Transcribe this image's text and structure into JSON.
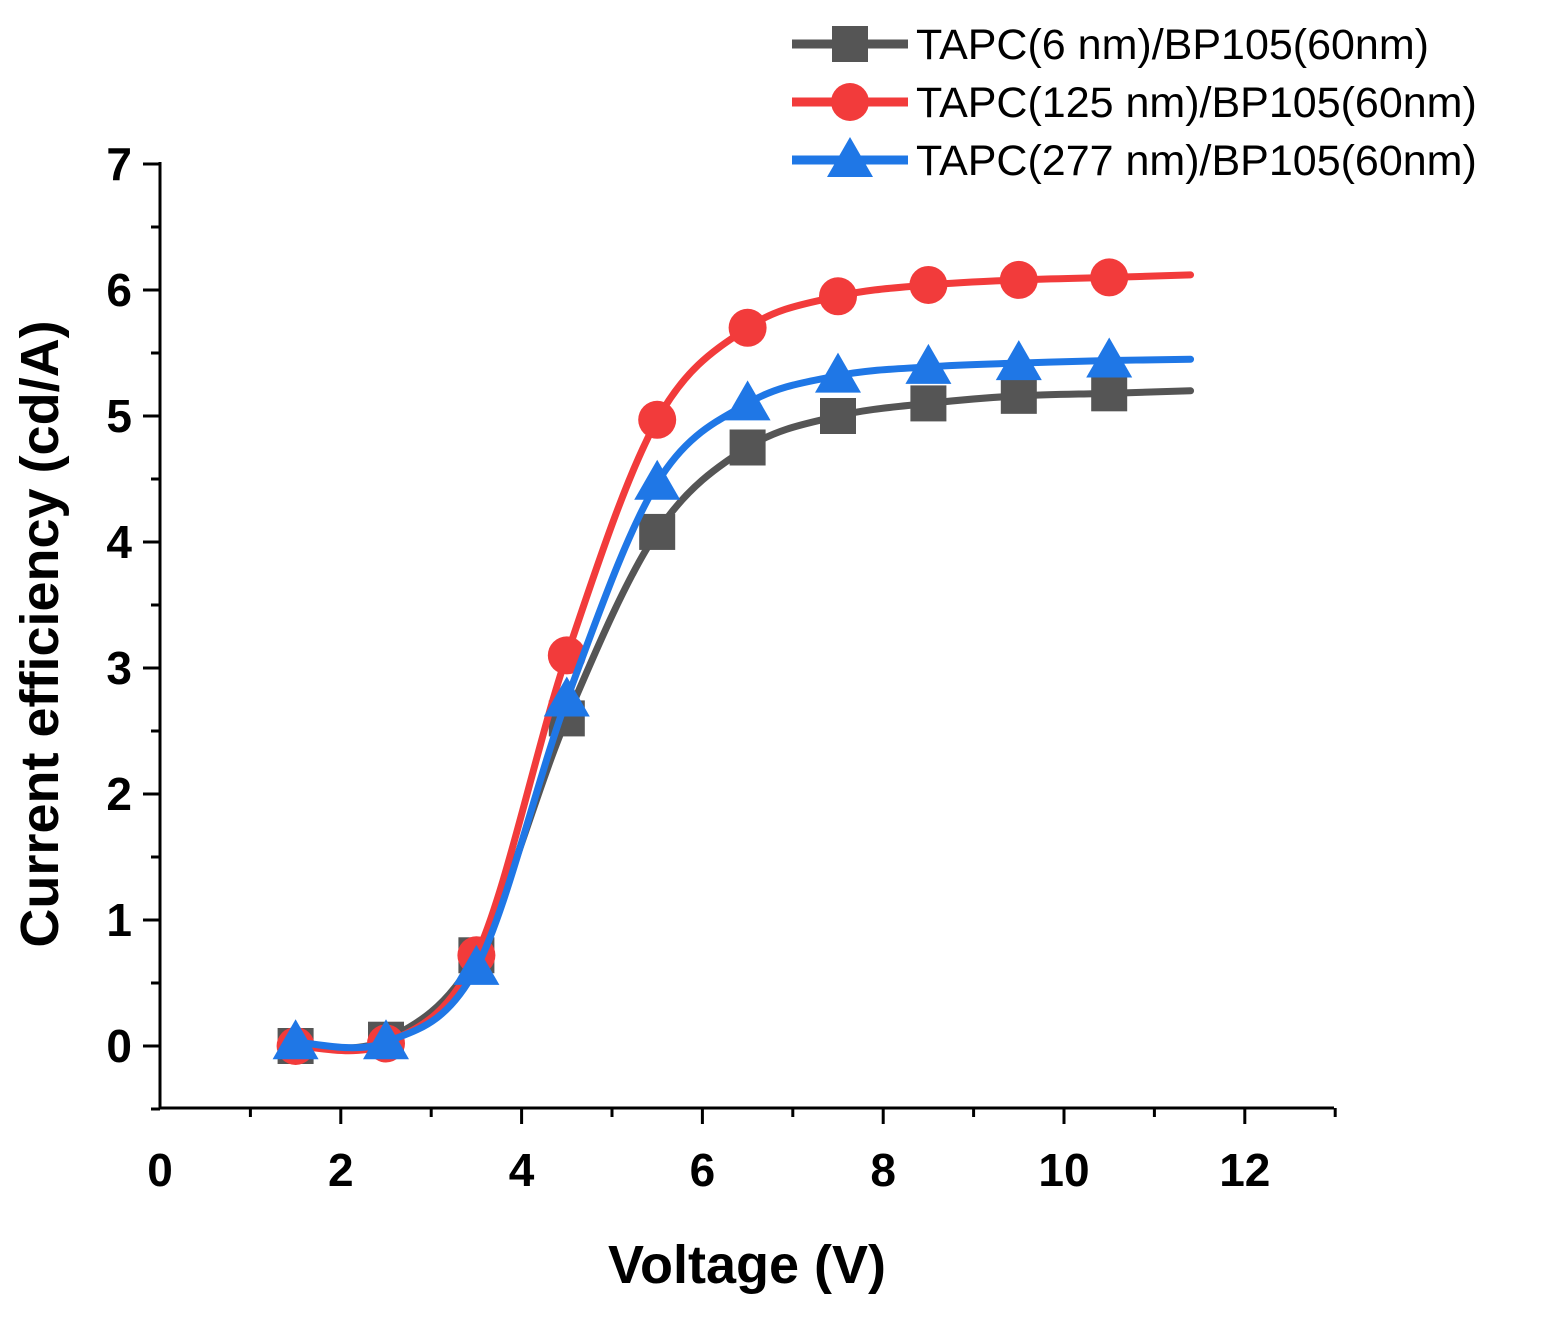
{
  "chart_data": {
    "type": "line",
    "title": "",
    "xlabel": "Voltage (V)",
    "ylabel": "Current efficiency (cd/A)",
    "xlim": [
      0,
      13
    ],
    "ylim": [
      -0.5,
      7
    ],
    "xticks": [
      "0",
      "2",
      "4",
      "6",
      "8",
      "10",
      "12"
    ],
    "yticks": [
      "0",
      "1",
      "2",
      "3",
      "4",
      "5",
      "6",
      "7"
    ],
    "grid": false,
    "legend_position": "top-right",
    "x": [
      1.5,
      2.5,
      3.5,
      4.5,
      5.5,
      6.5,
      7.5,
      8.5,
      9.5,
      10.5
    ],
    "x_end": 11.4,
    "series": [
      {
        "name": "TAPC(6 nm)/BP105(60nm)",
        "color": "#555555",
        "marker": "square",
        "values": [
          0.0,
          0.05,
          0.72,
          2.6,
          4.08,
          4.75,
          5.0,
          5.1,
          5.16,
          5.18
        ],
        "end_value": 5.2
      },
      {
        "name": "TAPC(125 nm)/BP105(60nm)",
        "color": "#f23b3b",
        "marker": "circle",
        "values": [
          0.0,
          0.02,
          0.72,
          3.1,
          4.97,
          5.7,
          5.95,
          6.04,
          6.08,
          6.1
        ],
        "end_value": 6.12
      },
      {
        "name": "TAPC(277 nm)/BP105(60nm)",
        "color": "#1f77e6",
        "marker": "triangle",
        "values": [
          0.03,
          0.03,
          0.62,
          2.75,
          4.47,
          5.1,
          5.32,
          5.39,
          5.42,
          5.44
        ],
        "end_value": 5.45
      }
    ]
  }
}
